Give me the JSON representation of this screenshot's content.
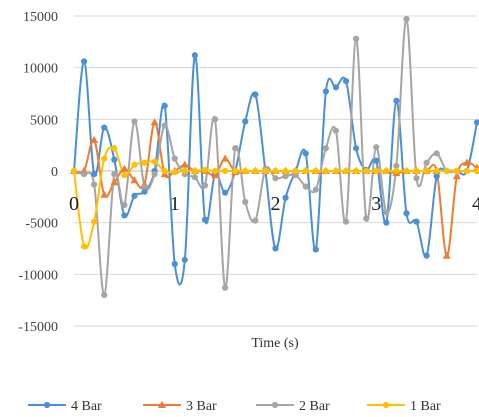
{
  "chart_data": {
    "type": "line",
    "title": "",
    "xlabel": "Time (s)",
    "ylabel": "",
    "xlim": [
      0,
      4
    ],
    "ylim": [
      -15000,
      15000
    ],
    "x_ticks": [
      "0",
      "1",
      "2",
      "3",
      "4"
    ],
    "y_ticks": [
      "15000",
      "10000",
      "5000",
      "0",
      "-5000",
      "-10000",
      "-15000"
    ],
    "y_tick_values": [
      15000,
      10000,
      5000,
      0,
      -5000,
      -10000,
      -15000
    ],
    "grid": "horizontal",
    "legend_position": "bottom",
    "smooth": true,
    "series": [
      {
        "name": "4 Bar",
        "color": "#4a90d2",
        "marker": "circle",
        "x": [
          0,
          0.1,
          0.2,
          0.3,
          0.4,
          0.5,
          0.6,
          0.7,
          0.8,
          0.9,
          1.0,
          1.1,
          1.2,
          1.3,
          1.4,
          1.5,
          1.6,
          1.7,
          1.8,
          1.9,
          2.0,
          2.1,
          2.2,
          2.3,
          2.4,
          2.5,
          2.6,
          2.7,
          2.8,
          2.9,
          3.0,
          3.1,
          3.2,
          3.3,
          3.4,
          3.5,
          3.6,
          3.7,
          3.8,
          3.9,
          4.0
        ],
        "y": [
          0,
          10600,
          -300,
          4200,
          1100,
          -4300,
          -2400,
          -2000,
          0,
          6300,
          -9000,
          -8600,
          11200,
          -4700,
          -300,
          -2100,
          0,
          4800,
          7400,
          0,
          -7500,
          -2600,
          0,
          1700,
          -7600,
          7700,
          8100,
          8700,
          2200,
          100,
          1000,
          -5000,
          6800,
          -4100,
          -4900,
          -8200,
          -500,
          0,
          0,
          0,
          4700
        ]
      },
      {
        "name": "3 Bar",
        "color": "#ed7d31",
        "marker": "triangle",
        "x": [
          0,
          0.1,
          0.2,
          0.3,
          0.4,
          0.5,
          0.6,
          0.7,
          0.8,
          0.9,
          1.0,
          1.1,
          1.2,
          1.3,
          1.4,
          1.5,
          1.6,
          1.7,
          1.8,
          1.9,
          2.0,
          2.1,
          2.2,
          2.3,
          2.4,
          2.5,
          2.6,
          2.7,
          2.8,
          2.9,
          3.0,
          3.1,
          3.2,
          3.3,
          3.4,
          3.5,
          3.6,
          3.7,
          3.8,
          3.9,
          4.0
        ],
        "y": [
          0,
          0,
          3000,
          -2300,
          -1100,
          200,
          -900,
          -1300,
          4700,
          -300,
          0,
          600,
          0,
          0,
          -400,
          1200,
          -100,
          0,
          0,
          0,
          0,
          0,
          0,
          0,
          0,
          0,
          0,
          0,
          0,
          0,
          0,
          0,
          -200,
          0,
          0,
          0,
          0,
          -8200,
          -500,
          800,
          300
        ]
      },
      {
        "name": "2 Bar",
        "color": "#a5a5a5",
        "marker": "circle",
        "x": [
          0,
          0.1,
          0.2,
          0.3,
          0.4,
          0.5,
          0.6,
          0.7,
          0.8,
          0.9,
          1.0,
          1.1,
          1.2,
          1.3,
          1.4,
          1.5,
          1.6,
          1.7,
          1.8,
          1.9,
          2.0,
          2.1,
          2.2,
          2.3,
          2.4,
          2.5,
          2.6,
          2.7,
          2.8,
          2.9,
          3.0,
          3.1,
          3.2,
          3.3,
          3.4,
          3.5,
          3.6,
          3.7,
          3.8,
          3.9,
          4.0
        ],
        "y": [
          0,
          -300,
          -1300,
          -12000,
          -300,
          -3300,
          4800,
          -1500,
          -300,
          4400,
          1200,
          -300,
          -600,
          -1400,
          5000,
          -11300,
          2200,
          -3000,
          -4800,
          200,
          -700,
          -500,
          -400,
          -1500,
          -1800,
          2200,
          3900,
          -4900,
          12800,
          -4600,
          2300,
          -4000,
          500,
          14700,
          -700,
          800,
          1700,
          0,
          0,
          0,
          0
        ]
      },
      {
        "name": "1 Bar",
        "color": "#ffc000",
        "marker": "circle",
        "x": [
          0,
          0.1,
          0.2,
          0.3,
          0.4,
          0.5,
          0.6,
          0.7,
          0.8,
          0.9,
          1.0,
          1.1,
          1.2,
          1.3,
          1.4,
          1.5,
          1.6,
          1.7,
          1.8,
          1.9,
          2.0,
          2.1,
          2.2,
          2.3,
          2.4,
          2.5,
          2.6,
          2.7,
          2.8,
          2.9,
          3.0,
          3.1,
          3.2,
          3.3,
          3.4,
          3.5,
          3.6,
          3.7,
          3.8,
          3.9,
          4.0
        ],
        "y": [
          0,
          -7300,
          -4900,
          1200,
          2200,
          -400,
          600,
          800,
          900,
          0,
          -100,
          0,
          0,
          100,
          0,
          0,
          0,
          0,
          0,
          0,
          0,
          0,
          0,
          0,
          0,
          0,
          0,
          0,
          0,
          0,
          0,
          0,
          0,
          0,
          0,
          0,
          0,
          0,
          0,
          0,
          0
        ]
      }
    ]
  }
}
